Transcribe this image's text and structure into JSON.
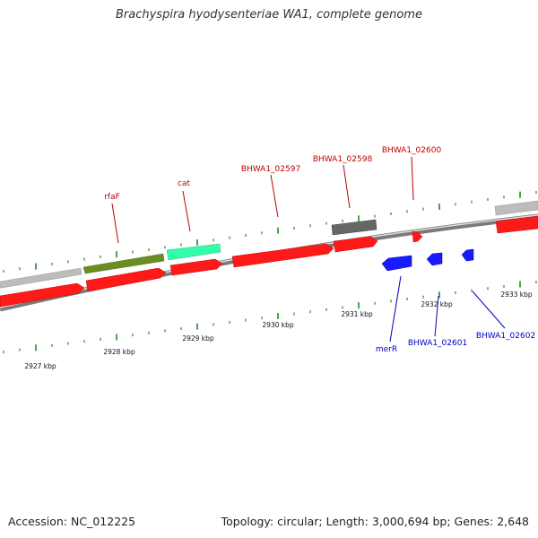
{
  "title": "Brachyspira hyodysenteriae WA1, complete genome",
  "accession": "Accession: NC_012225",
  "summary": "Topology: circular; Length: 3,000,694 bp; Genes: 2,648",
  "ruler_labels": [
    "2927 kbp",
    "2928 kbp",
    "2929 kbp",
    "2930 kbp",
    "2931 kbp",
    "2932 kbp",
    "2933 kbp"
  ],
  "gene_labels": {
    "rfaF": "rfaF",
    "cat": "cat",
    "b2597": "BHWA1_02597",
    "b2598": "BHWA1_02598",
    "b2600": "BHWA1_02600",
    "merR": "merR",
    "b2601": "BHWA1_02601",
    "b2602": "BHWA1_02602"
  },
  "colors": {
    "forward_label": "#c00000",
    "reverse_label": "#0000c0",
    "red": "#ff1a1a",
    "blue": "#1a1aff",
    "olive": "#6b8e23",
    "mint": "#33ffaa",
    "dark_gray": "#666666",
    "light_gray": "#bbbbbb",
    "tick": "#228b22"
  }
}
